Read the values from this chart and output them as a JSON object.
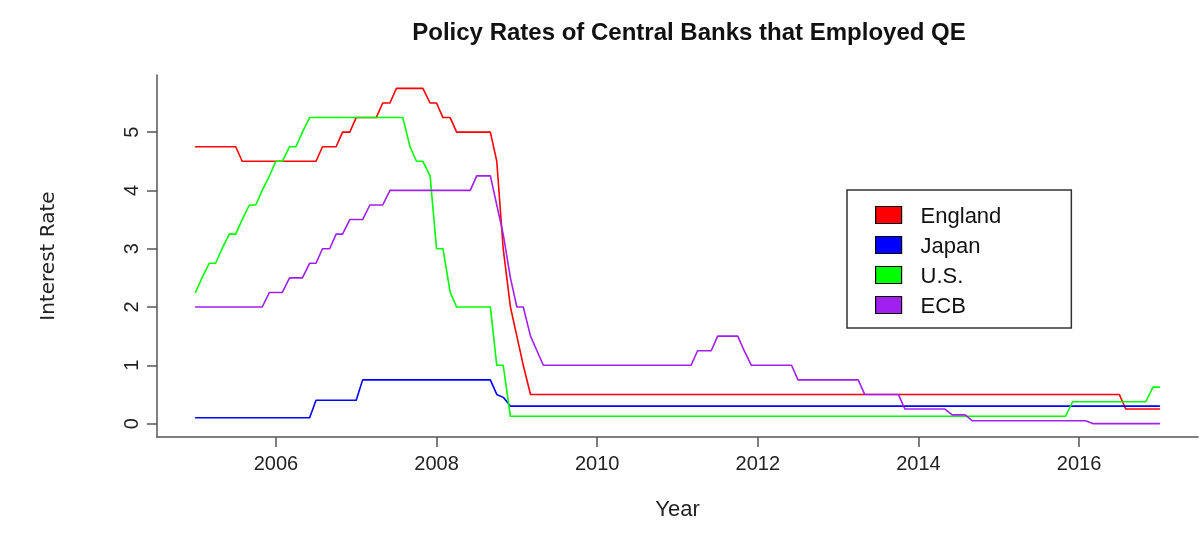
{
  "chart_data": {
    "type": "line",
    "title": "Policy Rates of Central Banks that Employed QE",
    "xlabel": "Year",
    "ylabel": "Interest Rate",
    "xlim": [
      2004.52,
      2017.48
    ],
    "xticks": [
      2006,
      2008,
      2010,
      2012,
      2014,
      2016
    ],
    "ylim": [
      -0.23,
      5.98
    ],
    "yticks": [
      0,
      1,
      2,
      3,
      4,
      5
    ],
    "grid": false,
    "legend": "right",
    "marker": "none",
    "line_style": "solid",
    "series": [
      {
        "name": "England",
        "color": "#ff0000",
        "x": [
          2005,
          2005.5,
          2005.58,
          2006.5,
          2006.58,
          2006.75,
          2006.83,
          2006.92,
          2007.0,
          2007.25,
          2007.33,
          2007.42,
          2007.5,
          2007.83,
          2007.92,
          2008.0,
          2008.08,
          2008.17,
          2008.25,
          2008.67,
          2008.75,
          2008.83,
          2008.92,
          2009.0,
          2009.08,
          2009.17,
          2016.5,
          2016.58,
          2017.0
        ],
        "values": [
          4.75,
          4.75,
          4.5,
          4.5,
          4.75,
          4.75,
          5.0,
          5.0,
          5.25,
          5.25,
          5.5,
          5.5,
          5.75,
          5.75,
          5.5,
          5.5,
          5.25,
          5.25,
          5.0,
          5.0,
          4.5,
          3.0,
          2.0,
          1.5,
          1.0,
          0.5,
          0.5,
          0.25,
          0.25
        ]
      },
      {
        "name": "Japan",
        "color": "#0000ff",
        "x": [
          2005,
          2006.42,
          2006.5,
          2007.0,
          2007.08,
          2008.67,
          2008.75,
          2008.83,
          2008.92,
          2017.0
        ],
        "values": [
          0.1,
          0.1,
          0.4,
          0.4,
          0.75,
          0.75,
          0.5,
          0.45,
          0.3,
          0.3
        ]
      },
      {
        "name": "U.S.",
        "color": "#00ff00",
        "x": [
          2005.0,
          2005.08,
          2005.17,
          2005.25,
          2005.33,
          2005.42,
          2005.5,
          2005.58,
          2005.67,
          2005.75,
          2005.83,
          2005.92,
          2006.0,
          2006.08,
          2006.17,
          2006.25,
          2006.33,
          2006.42,
          2007.58,
          2007.67,
          2007.75,
          2007.83,
          2007.92,
          2008.0,
          2008.08,
          2008.17,
          2008.25,
          2008.67,
          2008.75,
          2008.83,
          2008.92,
          2015.83,
          2015.92,
          2016.83,
          2016.92,
          2017.0
        ],
        "values": [
          2.25,
          2.5,
          2.75,
          2.75,
          3.0,
          3.25,
          3.25,
          3.5,
          3.75,
          3.75,
          4.0,
          4.25,
          4.5,
          4.5,
          4.75,
          4.75,
          5.0,
          5.25,
          5.25,
          4.75,
          4.5,
          4.5,
          4.25,
          3.0,
          3.0,
          2.25,
          2.0,
          2.0,
          1.0,
          1.0,
          0.125,
          0.125,
          0.375,
          0.375,
          0.625,
          0.625
        ]
      },
      {
        "name": "ECB",
        "color": "#a020f0",
        "x": [
          2005,
          2005.83,
          2005.92,
          2006.08,
          2006.17,
          2006.33,
          2006.42,
          2006.5,
          2006.58,
          2006.67,
          2006.75,
          2006.83,
          2006.92,
          2007.08,
          2007.17,
          2007.33,
          2007.42,
          2008.42,
          2008.5,
          2008.67,
          2008.75,
          2008.83,
          2008.92,
          2009.0,
          2009.08,
          2009.17,
          2009.25,
          2009.33,
          2011.17,
          2011.25,
          2011.42,
          2011.5,
          2011.75,
          2011.83,
          2011.92,
          2012.42,
          2012.5,
          2013.25,
          2013.33,
          2013.75,
          2013.83,
          2014.33,
          2014.42,
          2014.58,
          2014.67,
          2016.08,
          2016.17,
          2017.0
        ],
        "values": [
          2.0,
          2.0,
          2.25,
          2.25,
          2.5,
          2.5,
          2.75,
          2.75,
          3.0,
          3.0,
          3.25,
          3.25,
          3.5,
          3.5,
          3.75,
          3.75,
          4.0,
          4.0,
          4.25,
          4.25,
          3.75,
          3.25,
          2.5,
          2.0,
          2.0,
          1.5,
          1.25,
          1.0,
          1.0,
          1.25,
          1.25,
          1.5,
          1.5,
          1.25,
          1.0,
          1.0,
          0.75,
          0.75,
          0.5,
          0.5,
          0.25,
          0.25,
          0.15,
          0.15,
          0.05,
          0.05,
          0.0,
          0.0
        ]
      }
    ]
  }
}
